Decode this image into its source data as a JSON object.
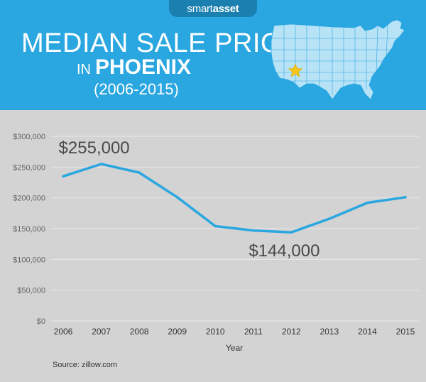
{
  "header": {
    "brand_left": "smart",
    "brand_right": "asset",
    "title_line1": "MEDIAN SALE PRICE",
    "title_prefix": "IN",
    "title_city": "PHOENIX",
    "title_years": "(2006-2015)",
    "map_icon": "usa-map-icon",
    "marker_icon": "star-icon"
  },
  "colors": {
    "header_bg": "#2aa6e0",
    "chart_bg": "#d3d3d3",
    "line": "#2aa6e0",
    "star": "#f5c518"
  },
  "chart_data": {
    "type": "line",
    "x": [
      2006,
      2007,
      2008,
      2009,
      2010,
      2011,
      2012,
      2013,
      2014,
      2015
    ],
    "series": [
      {
        "values": [
          235000,
          255000,
          241000,
          201000,
          154000,
          147000,
          144000,
          166000,
          192000,
          201000
        ]
      }
    ],
    "xlabel": "Year",
    "ylabel": "",
    "ylim": [
      0,
      300000
    ],
    "yticks": [
      0,
      50000,
      100000,
      150000,
      200000,
      250000,
      300000
    ],
    "ytick_labels": [
      "$0",
      "$50,000",
      "$100,000",
      "$150,000",
      "$200,000",
      "$250,000",
      "$300,000"
    ],
    "grid": true,
    "annotations": [
      {
        "text": "$255,000",
        "x": 2007,
        "y": 255000
      },
      {
        "text": "$144,000",
        "x": 2012,
        "y": 144000
      }
    ]
  },
  "footer": {
    "source": "Source: zillow.com"
  }
}
